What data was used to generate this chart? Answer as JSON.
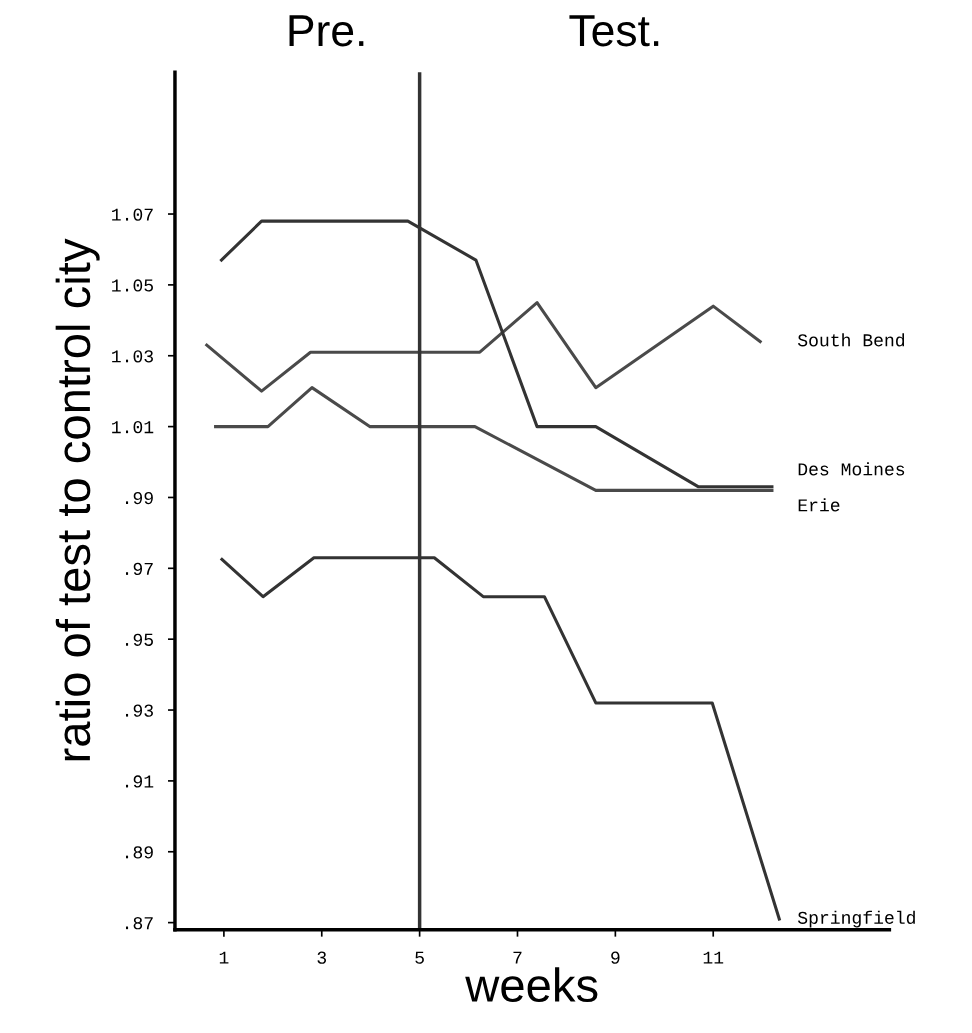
{
  "chart_data": {
    "type": "line",
    "xlabel": "weeks",
    "ylabel": "ratio of test to control city",
    "annotations": [
      "Pre.",
      "Test."
    ],
    "xlim": [
      0,
      14.6
    ],
    "ylim": [
      0.868,
      1.11
    ],
    "xticks": [
      1,
      3,
      5,
      7,
      9,
      11
    ],
    "yticks": [
      {
        "value": 0.87,
        "label": ".87"
      },
      {
        "value": 0.89,
        "label": ".89"
      },
      {
        "value": 0.91,
        "label": ".91"
      },
      {
        "value": 0.93,
        "label": ".93"
      },
      {
        "value": 0.95,
        "label": ".95"
      },
      {
        "value": 0.97,
        "label": ".97"
      },
      {
        "value": 0.99,
        "label": ".99"
      },
      1.01,
      1.03,
      1.05,
      1.07
    ],
    "ref_lines": [
      {
        "axis": "x",
        "value": 5,
        "color": "#333333"
      }
    ],
    "grid": false,
    "legend": false,
    "marker": "none",
    "line_style": "solid",
    "series": [
      {
        "name": "South Bend",
        "color": "#4a4a4a",
        "x": [
          0.65,
          1.77,
          2.77,
          6.23,
          7.4,
          8.6,
          11.0,
          11.96
        ],
        "values": [
          1.033,
          1.02,
          1.031,
          1.031,
          1.045,
          1.021,
          1.044,
          1.034
        ]
      },
      {
        "name": "Des Moines",
        "color": "#333333",
        "x": [
          0.95,
          1.77,
          4.76,
          6.15,
          7.4,
          8.6,
          10.7,
          12.2
        ],
        "values": [
          1.057,
          1.068,
          1.068,
          1.057,
          1.01,
          1.01,
          0.993,
          0.993
        ]
      },
      {
        "name": "Erie",
        "color": "#4a4a4a",
        "x": [
          0.83,
          1.9,
          2.8,
          3.98,
          6.13,
          8.6,
          12.2
        ],
        "values": [
          1.01,
          1.01,
          1.021,
          1.01,
          1.01,
          0.992,
          0.992
        ]
      },
      {
        "name": "Springfield",
        "color": "#333333",
        "x": [
          0.96,
          1.8,
          2.84,
          5.3,
          6.3,
          7.55,
          8.6,
          10.98,
          12.35
        ],
        "values": [
          0.9725,
          0.962,
          0.973,
          0.973,
          0.962,
          0.962,
          0.932,
          0.932,
          0.871
        ]
      }
    ]
  }
}
